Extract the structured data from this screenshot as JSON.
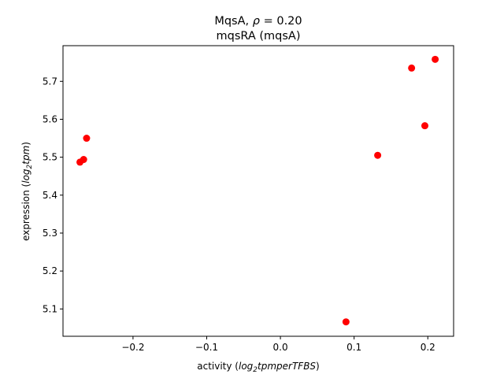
{
  "chart_data": {
    "type": "scatter",
    "title_line1_prefix": "MqsA, ",
    "title_rho_symbol": "ρ",
    "title_rho_value": " = 0.20",
    "title_line2": "mqsRA (mqsA)",
    "xlabel_prefix": "activity (",
    "xlabel_math_1": "log",
    "xlabel_sub": "2",
    "xlabel_math_2": "tpmperTFBS",
    "xlabel_suffix": ")",
    "ylabel_prefix": "expression (",
    "ylabel_math_1": "log",
    "ylabel_sub": "2",
    "ylabel_math_2": "tpm",
    "ylabel_suffix": ")",
    "xlim": [
      -0.295,
      0.235
    ],
    "ylim": [
      5.028,
      5.794
    ],
    "xticks": [
      -0.2,
      -0.1,
      0.0,
      0.1,
      0.2
    ],
    "xtick_labels": [
      "−0.2",
      "−0.1",
      "0.0",
      "0.1",
      "0.2"
    ],
    "yticks": [
      5.1,
      5.2,
      5.3,
      5.4,
      5.5,
      5.6,
      5.7
    ],
    "ytick_labels": [
      "5.1",
      "5.2",
      "5.3",
      "5.4",
      "5.5",
      "5.6",
      "5.7"
    ],
    "grid": false,
    "legend": "none",
    "marker_color": "#ff0000",
    "points": [
      {
        "x": -0.272,
        "y": 5.487
      },
      {
        "x": -0.267,
        "y": 5.494
      },
      {
        "x": -0.263,
        "y": 5.55
      },
      {
        "x": 0.089,
        "y": 5.066
      },
      {
        "x": 0.132,
        "y": 5.505
      },
      {
        "x": 0.178,
        "y": 5.735
      },
      {
        "x": 0.196,
        "y": 5.583
      },
      {
        "x": 0.21,
        "y": 5.758
      }
    ]
  }
}
